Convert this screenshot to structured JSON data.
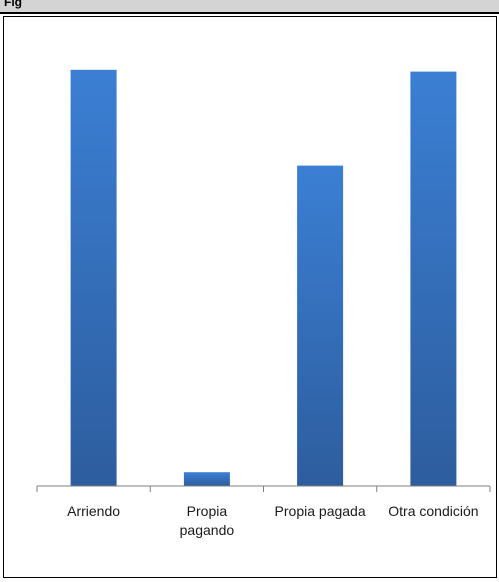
{
  "header": {
    "text": "Fig"
  },
  "colors": {
    "bar_top": "#3b7fd4",
    "bar_bottom": "#2d5d9e",
    "axis": "#7f7f7f"
  },
  "chart_data": {
    "type": "bar",
    "categories": [
      [
        "Arriendo"
      ],
      [
        "Propia",
        "pagando"
      ],
      [
        "Propia pagada"
      ],
      [
        "Otra condición"
      ]
    ],
    "values": [
      45.2,
      1.5,
      34.8,
      45.0
    ],
    "ylim": [
      0,
      48
    ],
    "title": "",
    "xlabel": "",
    "ylabel": "",
    "grid": false,
    "legend": "none"
  }
}
